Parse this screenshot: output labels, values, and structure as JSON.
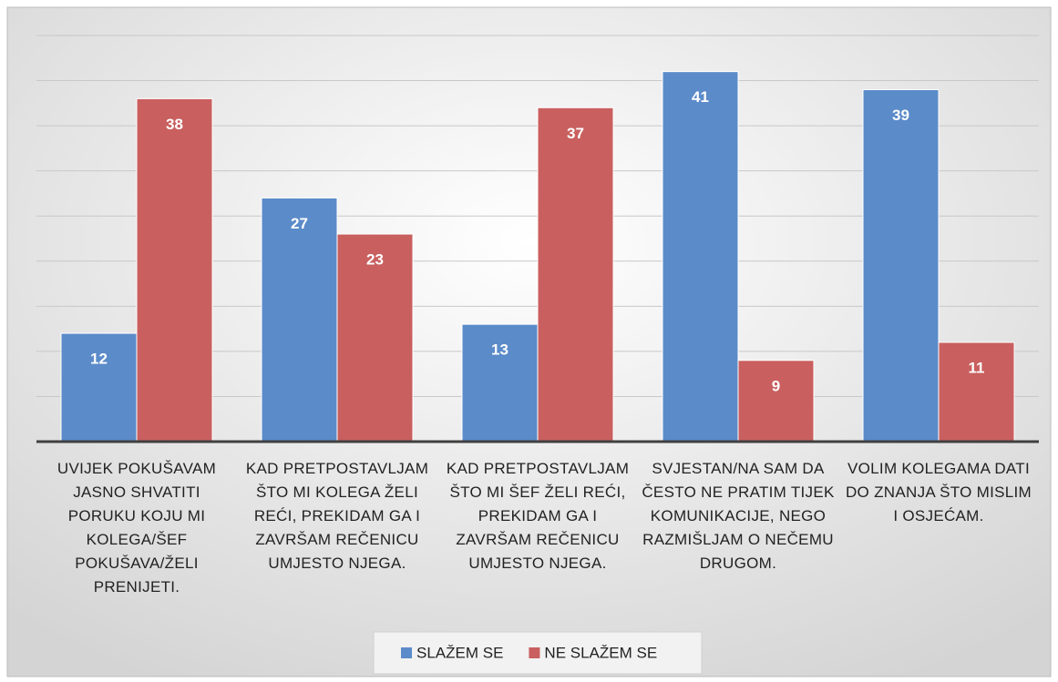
{
  "chart_data": {
    "type": "bar",
    "categories": [
      "UVIJEK POKUŠAVAM JASNO SHVATITI PORUKU KOJU MI KOLEGA/ŠEF POKUŠAVA/ŽELI PRENIJETI.",
      "KAD PRETPOSTAVLJAM ŠTO MI KOLEGA ŽELI REĆI, PREKIDAM GA I ZAVRŠAM REČENICU UMJESTO NJEGA.",
      "KAD PRETPOSTAVLJAM ŠTO MI ŠEF ŽELI REĆI, PREKIDAM GA I ZAVRŠAM REČENICU UMJESTO NJEGA.",
      "SVJESTAN/NA SAM DA ČESTO NE PRATIM TIJEK KOMUNIKACIJE, NEGO RAZMIŠLJAM O NEČEMU DRUGOM.",
      "VOLIM KOLEGAMA DATI DO ZNANJA ŠTO MISLIM I OSJEĆAM."
    ],
    "series": [
      {
        "name": "SLAŽEM SE",
        "color": "#5b8bc9",
        "values": [
          12,
          27,
          13,
          41,
          39
        ]
      },
      {
        "name": "NE SLAŽEM SE",
        "color": "#c95f5f",
        "values": [
          38,
          23,
          37,
          9,
          11
        ]
      }
    ],
    "ylim": [
      0,
      45
    ],
    "yticks": [
      0,
      5,
      10,
      15,
      20,
      25,
      30,
      35,
      40,
      45
    ],
    "grid": true
  }
}
